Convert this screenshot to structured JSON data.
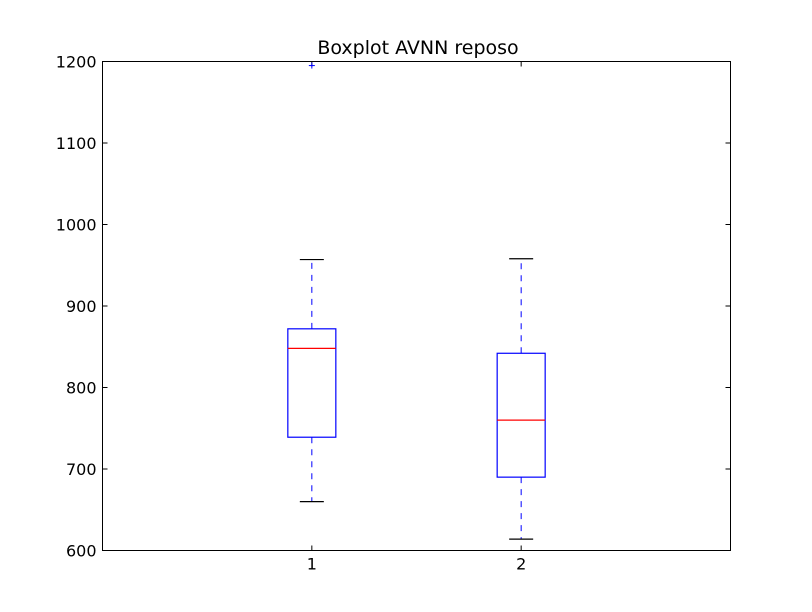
{
  "chart_data": {
    "type": "boxplot",
    "title": "Boxplot AVNN reposo",
    "xlabel": "",
    "ylabel": "",
    "ylim": [
      600,
      1200
    ],
    "yticks": [
      600,
      700,
      800,
      900,
      1000,
      1100,
      1200
    ],
    "categories": [
      "1",
      "2"
    ],
    "boxes": [
      {
        "category": "1",
        "whisker_low": 660,
        "q1": 739,
        "median": 848,
        "q3": 872,
        "whisker_high": 957,
        "fliers": [
          1195
        ]
      },
      {
        "category": "2",
        "whisker_low": 614,
        "q1": 690,
        "median": 760,
        "q3": 842,
        "whisker_high": 958,
        "fliers": []
      }
    ],
    "grid": false,
    "colors": {
      "box": "#0000ff",
      "median": "#ff0000",
      "cap": "#000000",
      "flier": "#0000ff",
      "axes": "#000000"
    }
  }
}
